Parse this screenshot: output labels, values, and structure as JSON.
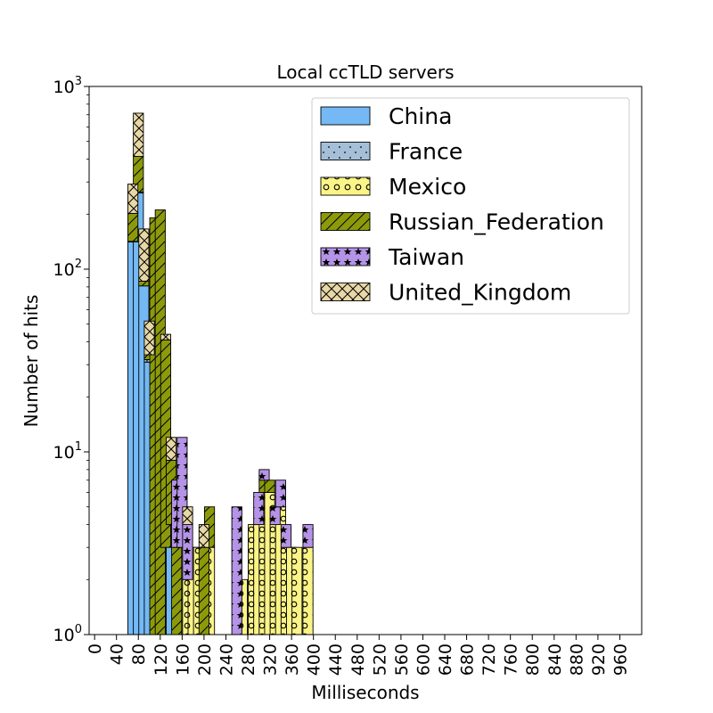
{
  "chart_data": {
    "type": "bar",
    "title": "Local ccTLD servers",
    "xlabel": "Milliseconds",
    "ylabel": "Number of hits",
    "y_scale": "log",
    "ylim": [
      1,
      1000
    ],
    "y_ticks": [
      {
        "value": 1,
        "base": "10",
        "exp": "0"
      },
      {
        "value": 10,
        "base": "10",
        "exp": "1"
      },
      {
        "value": 100,
        "base": "10",
        "exp": "2"
      },
      {
        "value": 1000,
        "base": "10",
        "exp": "3"
      }
    ],
    "xlim": [
      -10,
      1000
    ],
    "x_ticks": [
      "0",
      "40",
      "80",
      "120",
      "160",
      "200",
      "240",
      "280",
      "320",
      "360",
      "400",
      "440",
      "480",
      "520",
      "560",
      "600",
      "640",
      "680",
      "720",
      "760",
      "800",
      "840",
      "880",
      "920",
      "960"
    ],
    "bin_width": 20,
    "stacked": true,
    "legend_position": "upper-right",
    "series": [
      {
        "name": "China",
        "color": "#74b9f5",
        "hatch": "none",
        "bins": [
          [
            60,
            140
          ],
          [
            70,
            260
          ],
          [
            80,
            80
          ],
          [
            90,
            30
          ],
          [
            120,
            2
          ],
          [
            130,
            3
          ],
          [
            150,
            2
          ]
        ]
      },
      {
        "name": "France",
        "color": "#a5bfd8",
        "hatch": "dots",
        "bins": [
          [
            60,
            1
          ],
          [
            70,
            3
          ],
          [
            90,
            1
          ]
        ]
      },
      {
        "name": "Mexico",
        "color": "#fbf486",
        "hatch": "circles",
        "bins": [
          [
            160,
            1
          ],
          [
            170,
            2
          ],
          [
            180,
            2
          ],
          [
            200,
            2
          ],
          [
            260,
            1
          ],
          [
            280,
            3
          ],
          [
            290,
            3
          ],
          [
            300,
            5
          ],
          [
            310,
            5
          ],
          [
            320,
            3
          ],
          [
            330,
            4
          ],
          [
            340,
            2
          ],
          [
            350,
            2
          ],
          [
            360,
            2
          ],
          [
            380,
            2
          ]
        ]
      },
      {
        "name": "Russian_Federation",
        "color": "#8c9a0a",
        "hatch": "slash",
        "bins": [
          [
            60,
            60
          ],
          [
            70,
            150
          ],
          [
            80,
            5
          ],
          [
            90,
            2
          ],
          [
            100,
            190
          ],
          [
            110,
            210
          ],
          [
            120,
            38
          ],
          [
            130,
            5
          ],
          [
            140,
            2
          ],
          [
            190,
            2
          ],
          [
            200,
            2
          ],
          [
            300,
            1
          ],
          [
            310,
            1
          ]
        ]
      },
      {
        "name": "Taiwan",
        "color": "#b593e6",
        "hatch": "stars",
        "bins": [
          [
            140,
            4
          ],
          [
            150,
            9
          ],
          [
            160,
            2
          ],
          [
            250,
            4
          ],
          [
            290,
            2
          ],
          [
            300,
            1
          ],
          [
            320,
            1
          ],
          [
            330,
            2
          ],
          [
            340,
            1
          ],
          [
            380,
            1
          ]
        ]
      },
      {
        "name": "United_Kingdom",
        "color": "#e8d8a6",
        "hatch": "cross",
        "bins": [
          [
            60,
            90
          ],
          [
            70,
            300
          ],
          [
            80,
            80
          ],
          [
            90,
            18
          ],
          [
            120,
            3
          ],
          [
            130,
            3
          ],
          [
            160,
            1
          ],
          [
            190,
            1
          ]
        ]
      }
    ]
  }
}
